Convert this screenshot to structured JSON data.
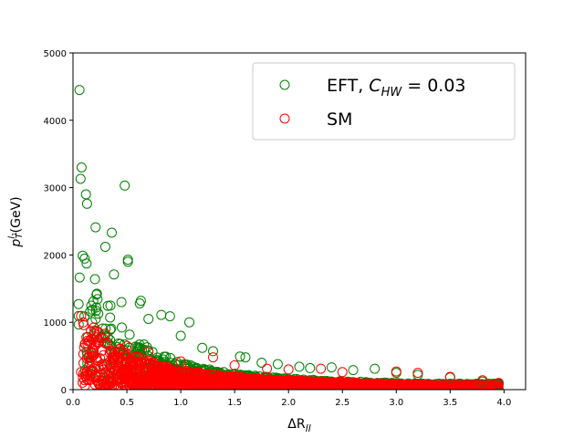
{
  "chart_data": {
    "type": "scatter",
    "title": "",
    "xlabel": "ΔR_ll",
    "ylabel": "p_T^{l_1}(GeV)",
    "xlim": [
      0.0,
      4.2
    ],
    "ylim": [
      0,
      5000
    ],
    "x_ticks": [
      "0.0",
      "0.5",
      "1.0",
      "1.5",
      "2.0",
      "2.5",
      "3.0",
      "3.5",
      "4.0"
    ],
    "y_ticks": [
      "0",
      "1000",
      "2000",
      "3000",
      "4000",
      "5000"
    ],
    "grid": false,
    "legend_position": "top-right",
    "marker": "open-circle",
    "series": [
      {
        "name": "EFT, C_HW = 0.03",
        "color": "#008000",
        "points": [
          [
            0.06,
            4450
          ],
          [
            0.08,
            3300
          ],
          [
            0.07,
            3130
          ],
          [
            0.12,
            2900
          ],
          [
            0.13,
            2760
          ],
          [
            0.48,
            3030
          ],
          [
            0.36,
            2330
          ],
          [
            0.21,
            2410
          ],
          [
            0.3,
            2120
          ],
          [
            0.51,
            1900
          ],
          [
            0.51,
            1930
          ],
          [
            0.38,
            1710
          ],
          [
            0.63,
            1320
          ],
          [
            0.62,
            1280
          ],
          [
            0.82,
            1110
          ],
          [
            0.9,
            1090
          ],
          [
            1.08,
            1000
          ],
          [
            0.45,
            1300
          ],
          [
            0.7,
            1050
          ],
          [
            1.0,
            800
          ],
          [
            1.2,
            620
          ],
          [
            1.3,
            570
          ],
          [
            1.55,
            490
          ],
          [
            1.6,
            480
          ],
          [
            1.75,
            400
          ],
          [
            1.9,
            380
          ],
          [
            2.1,
            340
          ],
          [
            2.2,
            320
          ],
          [
            2.4,
            330
          ],
          [
            2.6,
            290
          ],
          [
            2.8,
            310
          ],
          [
            3.0,
            250
          ],
          [
            3.2,
            220
          ],
          [
            3.5,
            180
          ],
          [
            3.8,
            120
          ],
          [
            3.95,
            90
          ]
        ]
      },
      {
        "name": "SM",
        "color": "#ff0000",
        "points": [
          [
            0.1,
            960
          ],
          [
            0.2,
            870
          ],
          [
            0.3,
            830
          ],
          [
            0.5,
            650
          ],
          [
            0.7,
            560
          ],
          [
            1.0,
            420
          ],
          [
            1.3,
            480
          ],
          [
            1.5,
            360
          ],
          [
            1.8,
            310
          ],
          [
            2.0,
            300
          ],
          [
            2.3,
            310
          ],
          [
            2.5,
            260
          ],
          [
            3.0,
            270
          ],
          [
            3.2,
            250
          ],
          [
            3.5,
            190
          ],
          [
            3.8,
            140
          ],
          [
            3.95,
            100
          ]
        ]
      }
    ]
  }
}
